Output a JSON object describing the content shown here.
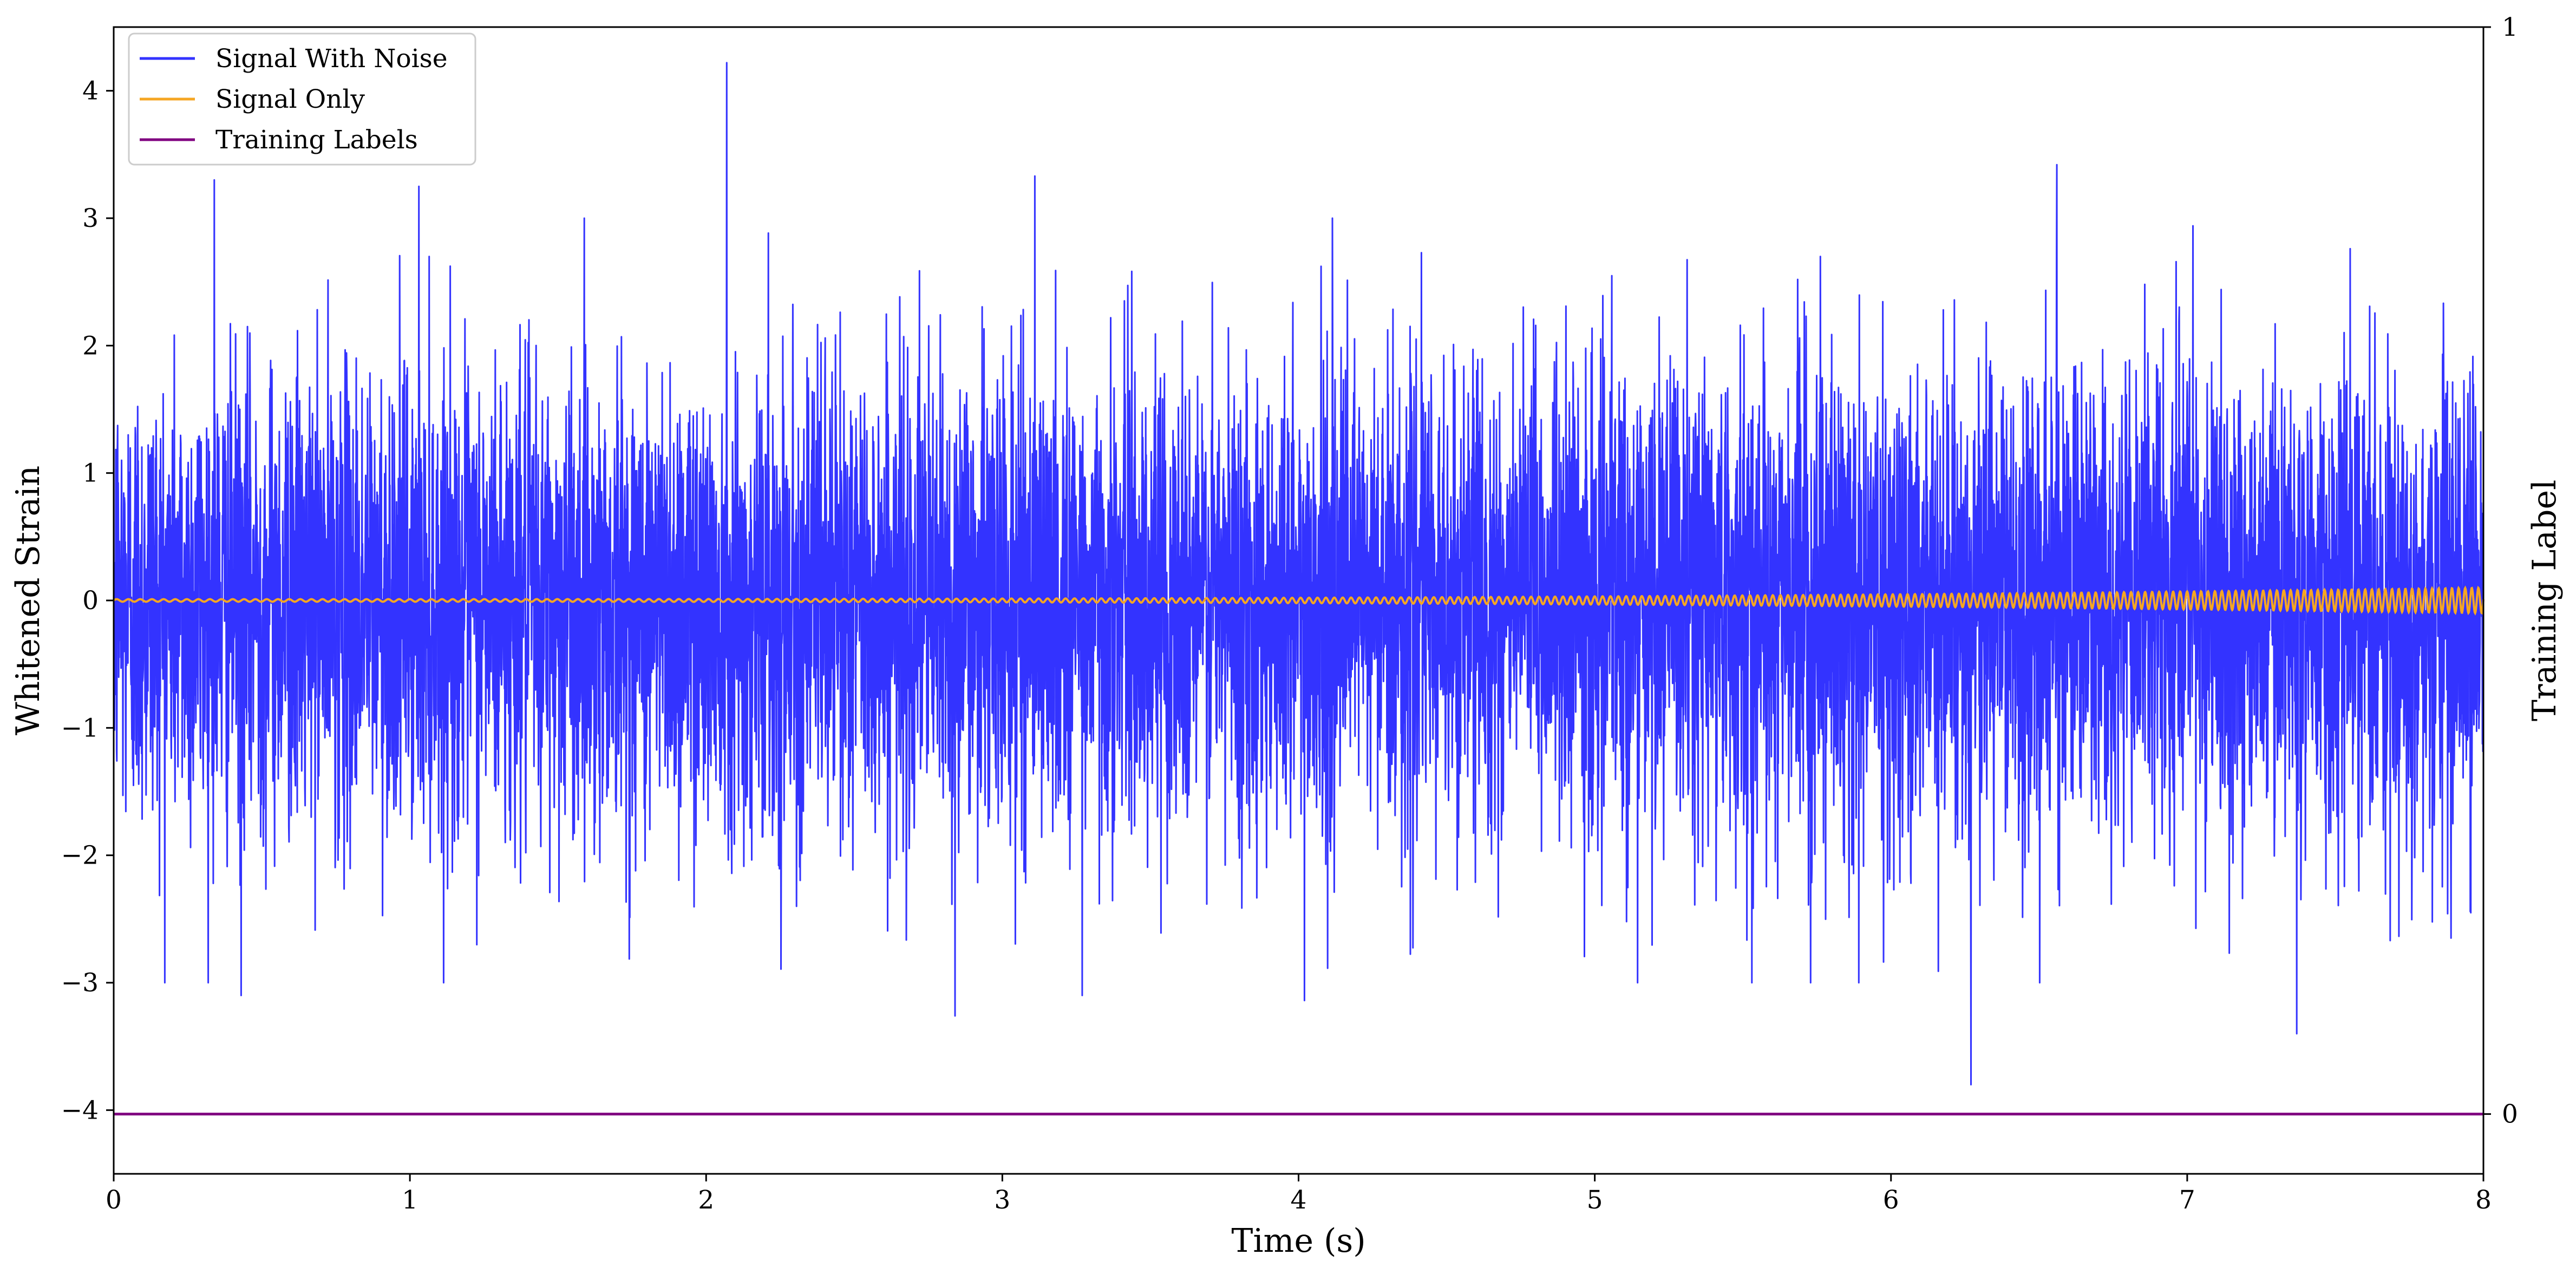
{
  "chart_data": {
    "type": "line",
    "xlabel": "Time (s)",
    "ylabel": "Whitened Strain",
    "y2label": "Training Label",
    "xlim": [
      0,
      8
    ],
    "ylim": [
      -4.5,
      4.5
    ],
    "y2lim": [
      -0.055,
      1.0
    ],
    "x_ticks": [
      0,
      1,
      2,
      3,
      4,
      5,
      6,
      7,
      8
    ],
    "x_tick_labels": [
      "0",
      "1",
      "2",
      "3",
      "4",
      "5",
      "6",
      "7",
      "8"
    ],
    "y_ticks": [
      -4,
      -3,
      -2,
      -1,
      0,
      1,
      2,
      3,
      4
    ],
    "y_tick_labels": [
      "−4",
      "−3",
      "−2",
      "−1",
      "0",
      "1",
      "2",
      "3",
      "4"
    ],
    "y2_ticks": [
      0,
      1
    ],
    "y2_tick_labels": [
      "0",
      "1"
    ],
    "grid": false,
    "legend_position": "top-left",
    "series": [
      {
        "name": "Signal With Noise",
        "color": "#3333ff",
        "description_values": {
          "approx_std": 0.9,
          "min": -3.8,
          "max": 4.22,
          "notable_peaks": [
            {
              "x": 2.07,
              "y": 4.22
            },
            {
              "x": 0.34,
              "y": 3.3
            },
            {
              "x": 1.03,
              "y": 3.25
            },
            {
              "x": 3.11,
              "y": 3.33
            },
            {
              "x": 6.56,
              "y": 3.42
            },
            {
              "x": 6.27,
              "y": -3.8
            },
            {
              "x": 0.43,
              "y": -3.1
            },
            {
              "x": 2.84,
              "y": -3.26
            },
            {
              "x": 3.27,
              "y": -3.1
            },
            {
              "x": 4.02,
              "y": -3.14
            },
            {
              "x": 7.37,
              "y": -3.4
            }
          ]
        }
      },
      {
        "name": "Signal Only",
        "color": "#f5a623",
        "description_values": {
          "waveform": "chirp",
          "start_amplitude": 0.01,
          "end_amplitude": 0.1,
          "start_frequency_hz": 25,
          "end_frequency_hz": 45
        }
      },
      {
        "name": "Training Labels",
        "color": "#800080",
        "axis": "right",
        "x": [
          0,
          8
        ],
        "values": [
          0,
          0
        ]
      }
    ]
  }
}
